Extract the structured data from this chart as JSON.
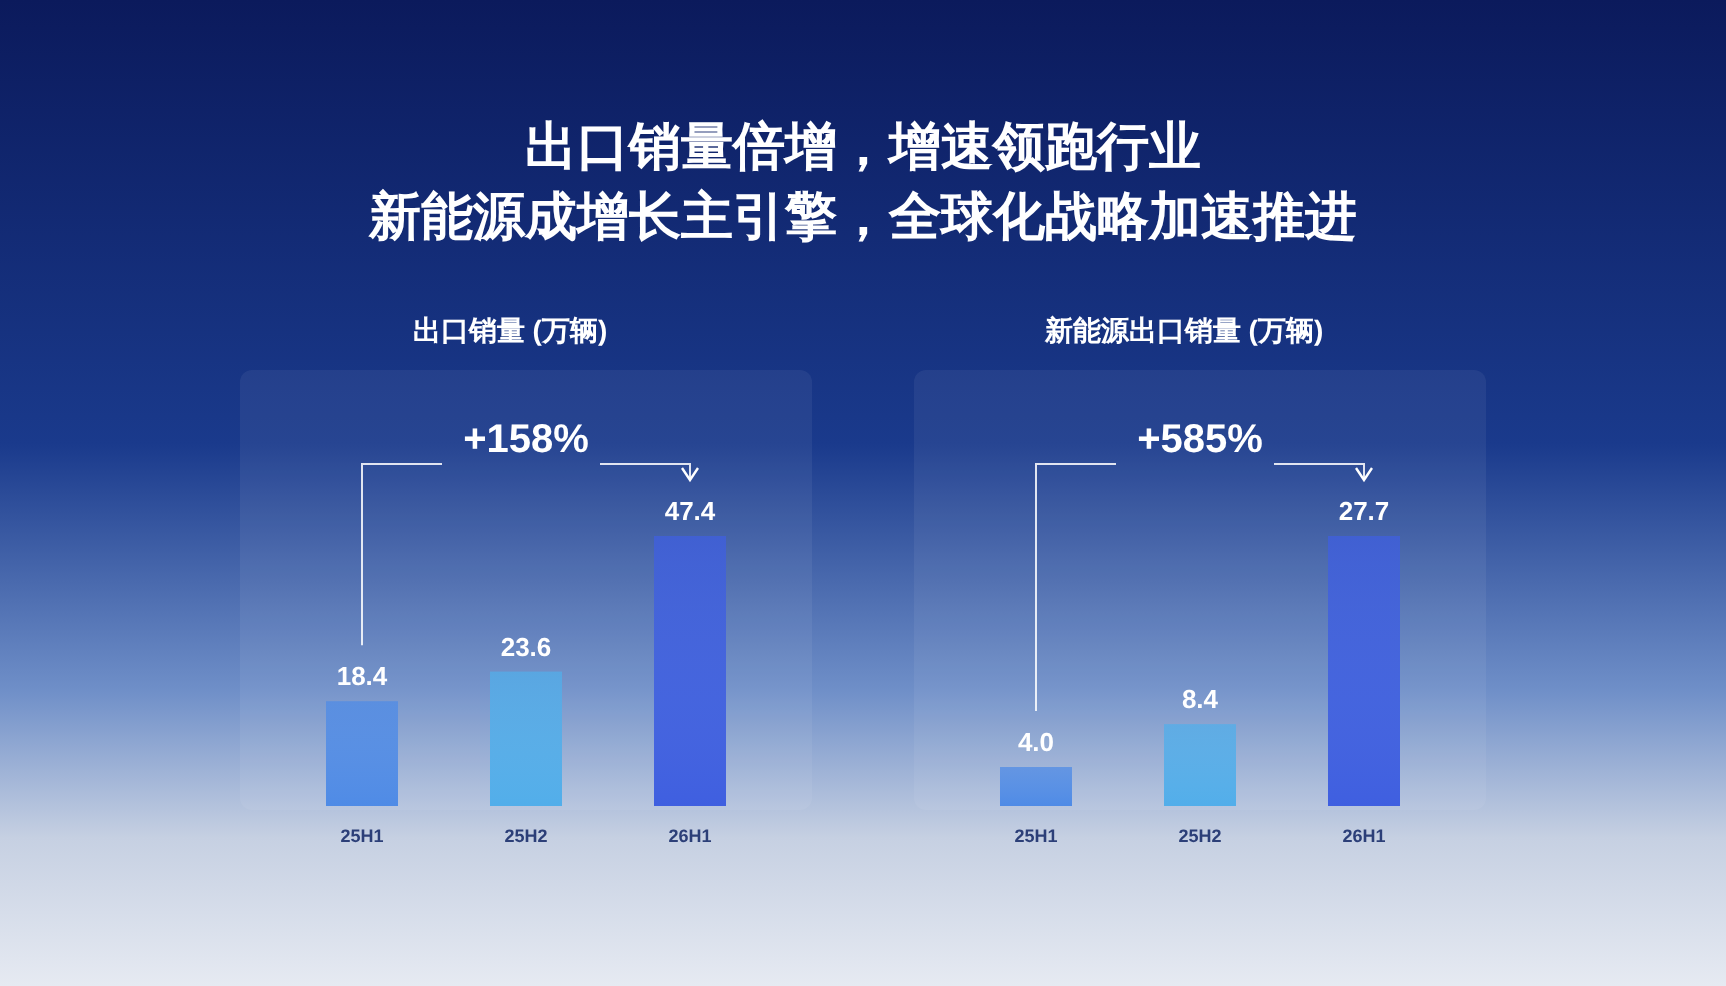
{
  "chart_data": [
    {
      "type": "other",
      "title": "出口销量倍增，增速领跑行业",
      "subtitle": "新能源成增长主引擎，全球化战略加速推进"
    },
    {
      "type": "bar",
      "title": "出口销量 (万辆)",
      "categories": [
        "25H1",
        "25H2",
        "26H1"
      ],
      "values": [
        18.4,
        23.6,
        47.4
      ],
      "colors": [
        "#4f8be6",
        "#52aeea",
        "#3f5fe0"
      ],
      "data_labels": true,
      "annotations": [
        "+158%"
      ]
    },
    {
      "type": "bar",
      "title": "新能源出口销量 (万辆)",
      "categories": [
        "25H1",
        "25H2",
        "26H1"
      ],
      "values": [
        4.0,
        8.4,
        27.7
      ],
      "value_labels": [
        "4.0",
        "8.4",
        "27.7"
      ],
      "colors": [
        "#4f8be6",
        "#52aeea",
        "#3f5fe0"
      ],
      "annotations": [
        "+585%"
      ]
    }
  ]
}
